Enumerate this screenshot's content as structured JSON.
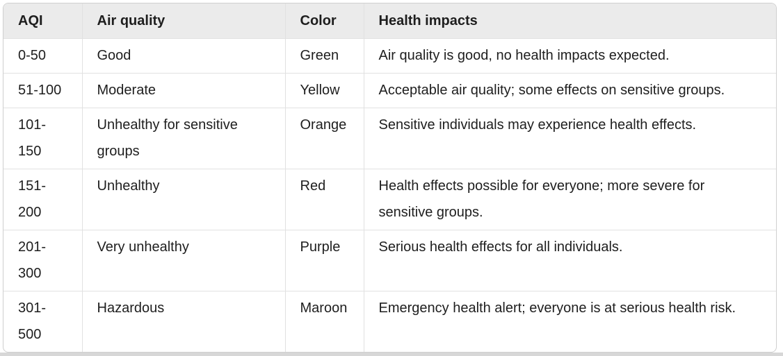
{
  "table": {
    "headers": {
      "aqi": "AQI",
      "quality": "Air quality",
      "color": "Color",
      "impacts": "Health impacts"
    },
    "rows": [
      {
        "aqi": "0-50",
        "quality": "Good",
        "color": "Green",
        "impacts": "Air quality is good, no health impacts expected."
      },
      {
        "aqi": "51-100",
        "quality": "Moderate",
        "color": "Yellow",
        "impacts": "Acceptable air quality; some effects on sensitive groups."
      },
      {
        "aqi": "101-150",
        "quality": "Unhealthy for sensitive groups",
        "color": "Orange",
        "impacts": "Sensitive individuals may experience health effects."
      },
      {
        "aqi": "151-200",
        "quality": "Unhealthy",
        "color": "Red",
        "impacts": "Health effects possible for everyone; more severe for sensitive groups."
      },
      {
        "aqi": "201-300",
        "quality": "Very unhealthy",
        "color": "Purple",
        "impacts": "Serious health effects for all individuals."
      },
      {
        "aqi": "301-500",
        "quality": "Hazardous",
        "color": "Maroon",
        "impacts": "Emergency health alert; everyone is at serious health risk."
      }
    ]
  },
  "colors": {
    "page_bg": "#ffffff",
    "header_bg": "#ebebeb",
    "grid_line": "#e1e1e1",
    "outer_border": "#cfcfcf",
    "text": "#1e1e1e",
    "bottom_strip": "#d7d7d7"
  }
}
